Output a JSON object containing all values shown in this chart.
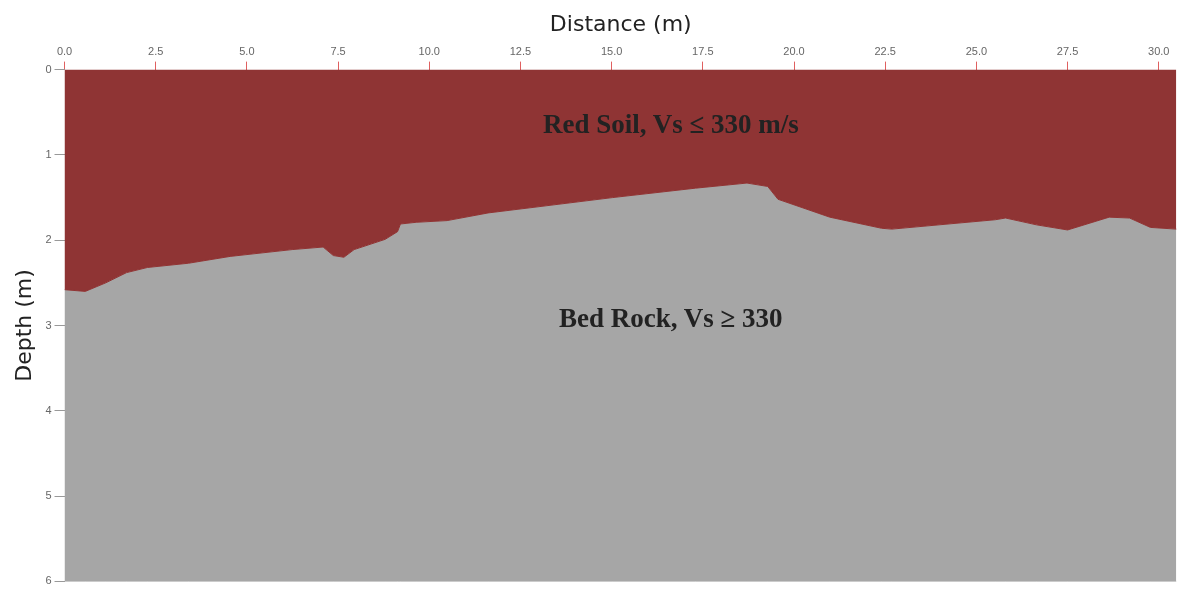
{
  "chart_data": {
    "type": "area",
    "stacked": true,
    "xlabel": "Distance (m)",
    "ylabel": "Depth (m)",
    "x": [
      0,
      0.57,
      1.13,
      1.7,
      2.27,
      3.4,
      4.54,
      6.24,
      7.09,
      7.37,
      7.66,
      7.94,
      8.79,
      9.13,
      9.21,
      9.64,
      10.49,
      11.62,
      12.76,
      15.03,
      17.3,
      18.71,
      19.28,
      19.56,
      20.98,
      22.4,
      22.68,
      25.52,
      25.8,
      26.65,
      27.5,
      28.64,
      29.2,
      29.77,
      30.48
    ],
    "series": [
      {
        "color": "#8f3434",
        "values": [
          2.58,
          2.6,
          2.5,
          2.38,
          2.32,
          2.27,
          2.19,
          2.11,
          2.08,
          2.18,
          2.2,
          2.11,
          1.99,
          1.9,
          1.81,
          1.79,
          1.77,
          1.68,
          1.62,
          1.5,
          1.39,
          1.33,
          1.37,
          1.52,
          1.73,
          1.86,
          1.87,
          1.76,
          1.74,
          1.82,
          1.88,
          1.73,
          1.74,
          1.85,
          1.87
        ]
      },
      {
        "color": "#a6a6a6",
        "values": [
          3.42,
          3.4,
          3.5,
          3.62,
          3.68,
          3.73,
          3.81,
          3.89,
          3.92,
          3.82,
          3.8,
          3.89,
          4.01,
          4.1,
          4.19,
          4.21,
          4.23,
          4.32,
          4.38,
          4.5,
          4.61,
          4.67,
          4.63,
          4.48,
          4.27,
          4.14,
          4.13,
          4.24,
          4.26,
          4.18,
          4.12,
          4.27,
          4.26,
          4.15,
          4.13
        ]
      }
    ],
    "xlim": [
      0,
      30.5
    ],
    "xticks": [
      {
        "value": 0,
        "label": "0.0"
      },
      {
        "value": 2.5,
        "label": "2.5"
      },
      {
        "value": 5,
        "label": "5.0"
      },
      {
        "value": 7.5,
        "label": "7.5"
      },
      {
        "value": 10,
        "label": "10.0"
      },
      {
        "value": 12.5,
        "label": "12.5"
      },
      {
        "value": 15,
        "label": "15.0"
      },
      {
        "value": 17.5,
        "label": "17.5"
      },
      {
        "value": 20,
        "label": "20.0"
      },
      {
        "value": 22.5,
        "label": "22.5"
      },
      {
        "value": 25,
        "label": "25.0"
      },
      {
        "value": 27.5,
        "label": "27.5"
      },
      {
        "value": 30,
        "label": "30.0"
      }
    ],
    "ylim": [
      6,
      0
    ],
    "yticks": [
      0,
      1,
      2,
      3,
      4,
      5,
      6
    ],
    "annotations": [
      "Red Soil, Vs ≤ 330 m/s",
      "Bed Rock, Vs ≥ 330"
    ],
    "grid": false,
    "legend": false
  }
}
